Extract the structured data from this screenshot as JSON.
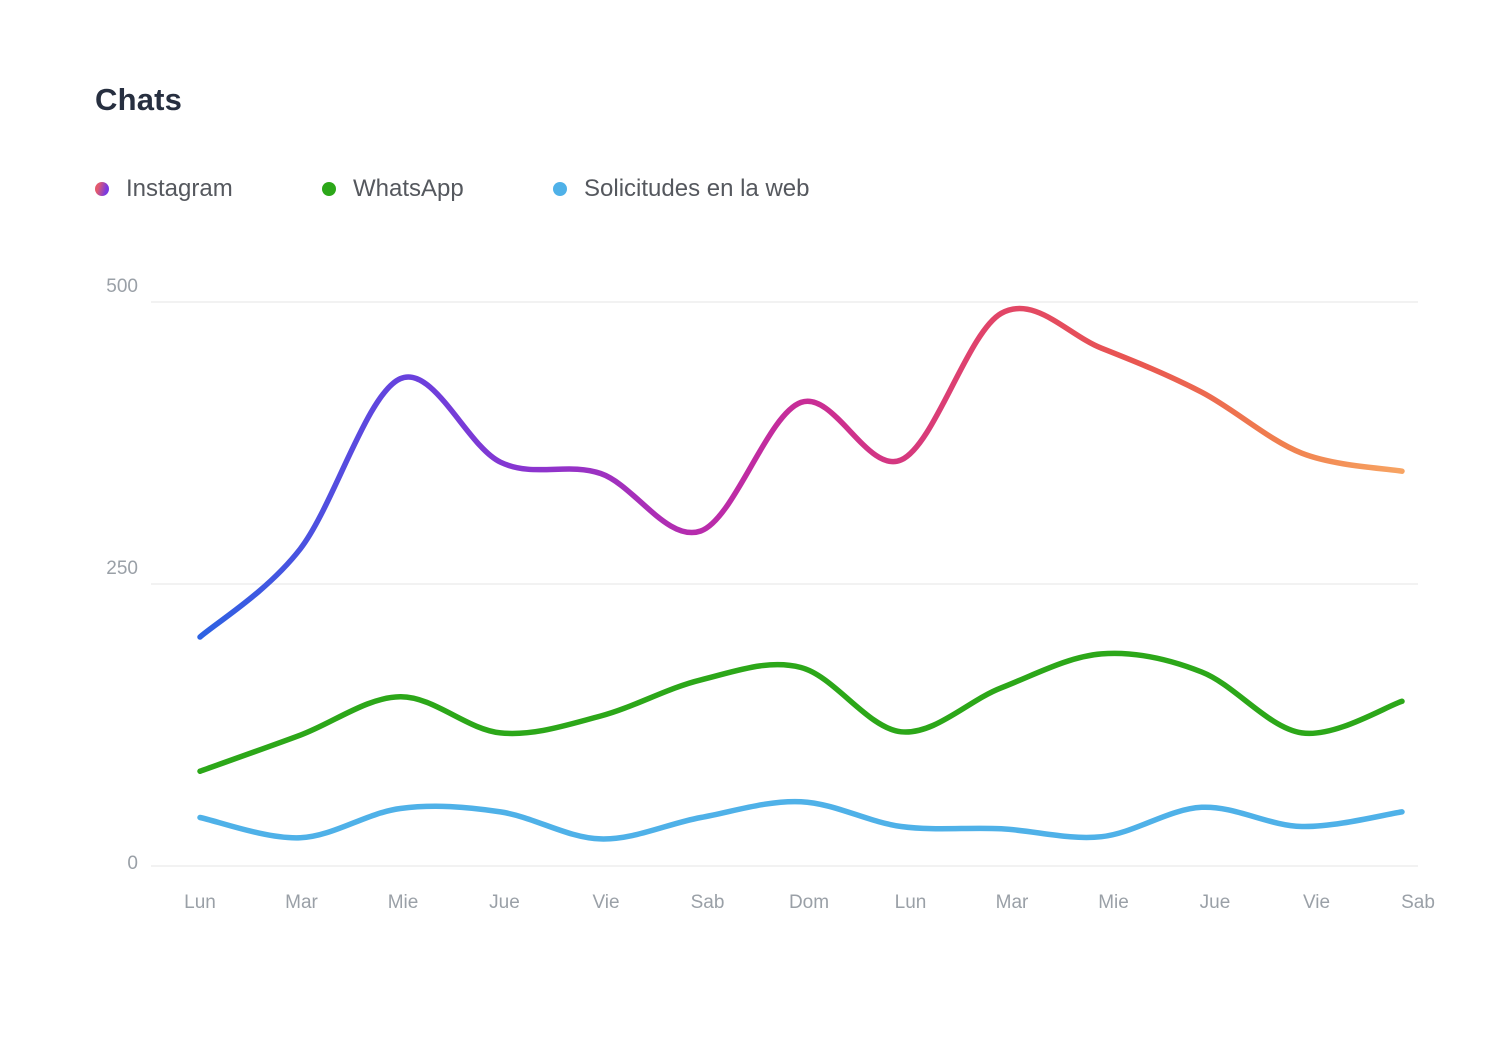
{
  "title": "Chats",
  "legend": [
    {
      "label": "Instagram",
      "dot": "gradient",
      "dot_colors": [
        "#E25A6E",
        "#7B3BDF"
      ]
    },
    {
      "label": "WhatsApp",
      "dot": "solid",
      "dot_colors": [
        "#2CA719"
      ]
    },
    {
      "label": "Solicitudes en la web",
      "dot": "solid",
      "dot_colors": [
        "#4FB1E8"
      ]
    }
  ],
  "chart_data": {
    "type": "line",
    "title": "Chats",
    "categories": [
      "Lun",
      "Mar",
      "Mie",
      "Jue",
      "Vie",
      "Sab",
      "Dom",
      "Lun",
      "Mar",
      "Mie",
      "Jue",
      "Vie",
      "Sab"
    ],
    "series": [
      {
        "name": "Instagram",
        "values": [
          203,
          281,
          432,
          358,
          348,
          297,
          411,
          360,
          490,
          459,
          420,
          366,
          350
        ],
        "stroke": "instagram-gradient",
        "gradient_stops": [
          {
            "offset": "0%",
            "color": "#2D62E3"
          },
          {
            "offset": "18%",
            "color": "#6B40DD"
          },
          {
            "offset": "28%",
            "color": "#8C34CE"
          },
          {
            "offset": "42%",
            "color": "#B92CAB"
          },
          {
            "offset": "51%",
            "color": "#C92D95"
          },
          {
            "offset": "65%",
            "color": "#E0436B"
          },
          {
            "offset": "78%",
            "color": "#E95650"
          },
          {
            "offset": "90%",
            "color": "#F0804F"
          },
          {
            "offset": "100%",
            "color": "#F7A463"
          }
        ]
      },
      {
        "name": "WhatsApp",
        "values": [
          84,
          116,
          150,
          118,
          133,
          165,
          176,
          119,
          158,
          188,
          172,
          118,
          146
        ],
        "stroke": "#2CA719"
      },
      {
        "name": "Solicitudes en la web",
        "values": [
          43,
          25,
          51,
          48,
          24,
          43,
          57,
          35,
          33,
          26,
          52,
          35,
          48
        ],
        "stroke": "#4FB1E8"
      }
    ],
    "yticks": [
      0,
      250,
      500
    ],
    "ylim": [
      0,
      530
    ],
    "grid": "horizontal",
    "gridline_color": "#e9e9ea",
    "legend_position": "top",
    "smoothing": "catmull-rom",
    "line_width": 5.5
  }
}
